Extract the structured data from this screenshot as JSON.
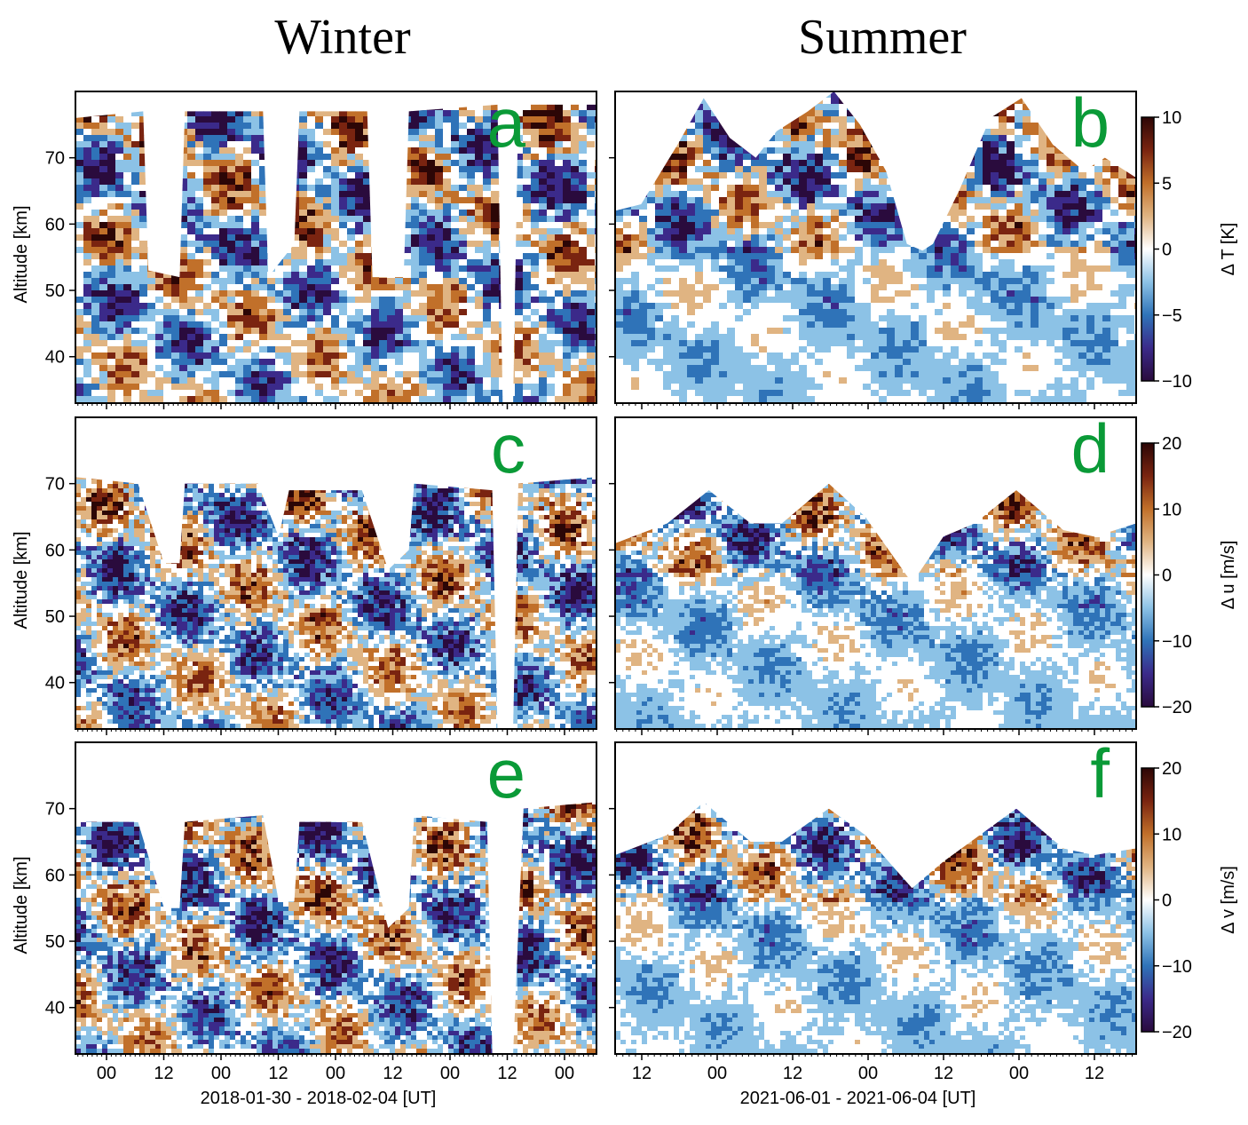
{
  "titles": {
    "left": "Winter",
    "right": "Summer"
  },
  "colors": {
    "colormap": [
      "#2a0b3d",
      "#3b2a8a",
      "#2f73b8",
      "#8cc2e6",
      "#ffffff",
      "#e0b482",
      "#c1702a",
      "#7a2410",
      "#2c0606"
    ],
    "panel_letter": "#0a9a37",
    "no_data": "#ffffff"
  },
  "chart_data": [
    {
      "type": "heatmap",
      "panel": "a",
      "column": "winter",
      "variable": "ΔT",
      "xlabel": "",
      "ylabel": "Altitude [km]",
      "ylim": [
        33,
        80
      ],
      "yticks": [
        40,
        50,
        60,
        70
      ],
      "xticks": [
        "00",
        "12",
        "00",
        "12",
        "00",
        "12",
        "00",
        "12",
        "00"
      ],
      "zlim": [
        -10,
        10
      ],
      "top_altitude_km": [
        [
          0,
          76
        ],
        [
          0.13,
          77
        ],
        [
          0.14,
          53
        ],
        [
          0.2,
          52
        ],
        [
          0.21,
          77
        ],
        [
          0.36,
          77
        ],
        [
          0.37,
          52
        ],
        [
          0.42,
          57
        ],
        [
          0.43,
          77
        ],
        [
          0.56,
          77
        ],
        [
          0.57,
          52
        ],
        [
          0.63,
          52
        ],
        [
          0.64,
          77
        ],
        [
          0.81,
          78
        ],
        [
          0.82,
          0
        ],
        [
          0.84,
          0
        ],
        [
          0.85,
          78
        ],
        [
          1,
          78
        ]
      ]
    },
    {
      "type": "heatmap",
      "panel": "b",
      "column": "summer",
      "variable": "ΔT",
      "xlabel": "",
      "ylabel": "",
      "ylim": [
        33,
        80
      ],
      "yticks": [
        40,
        50,
        60,
        70
      ],
      "xticks": [
        "12",
        "00",
        "12",
        "00",
        "12",
        "00",
        "12"
      ],
      "zlim": [
        -10,
        10
      ],
      "colorbar_label": "Δ T [K]",
      "colorbar_ticks": [
        10,
        5,
        0,
        -5,
        -10
      ],
      "top_altitude_km": [
        [
          0,
          62
        ],
        [
          0.05,
          63
        ],
        [
          0.12,
          72
        ],
        [
          0.17,
          79
        ],
        [
          0.22,
          73
        ],
        [
          0.27,
          70
        ],
        [
          0.31,
          74
        ],
        [
          0.37,
          77
        ],
        [
          0.42,
          80
        ],
        [
          0.47,
          75
        ],
        [
          0.52,
          68
        ],
        [
          0.56,
          57
        ],
        [
          0.59,
          56
        ],
        [
          0.61,
          57
        ],
        [
          0.66,
          65
        ],
        [
          0.72,
          76
        ],
        [
          0.78,
          79
        ],
        [
          0.84,
          72
        ],
        [
          0.9,
          68
        ],
        [
          0.94,
          70
        ],
        [
          1,
          67
        ]
      ]
    },
    {
      "type": "heatmap",
      "panel": "c",
      "column": "winter",
      "variable": "Δu",
      "xlabel": "",
      "ylabel": "Altitude [km]",
      "ylim": [
        33,
        80
      ],
      "yticks": [
        40,
        50,
        60,
        70
      ],
      "xticks": [
        "00",
        "12",
        "00",
        "12",
        "00",
        "12",
        "00",
        "12",
        "00"
      ],
      "zlim": [
        -20,
        20
      ],
      "top_altitude_km": [
        [
          0,
          71
        ],
        [
          0.12,
          70
        ],
        [
          0.17,
          58
        ],
        [
          0.2,
          58
        ],
        [
          0.21,
          70
        ],
        [
          0.35,
          70
        ],
        [
          0.39,
          62
        ],
        [
          0.41,
          69
        ],
        [
          0.55,
          69
        ],
        [
          0.6,
          57
        ],
        [
          0.64,
          60
        ],
        [
          0.65,
          70
        ],
        [
          0.8,
          69
        ],
        [
          0.81,
          0
        ],
        [
          0.84,
          0
        ],
        [
          0.85,
          70
        ],
        [
          1,
          71
        ]
      ]
    },
    {
      "type": "heatmap",
      "panel": "d",
      "column": "summer",
      "variable": "Δu",
      "xlabel": "",
      "ylabel": "",
      "ylim": [
        33,
        80
      ],
      "yticks": [
        40,
        50,
        60,
        70
      ],
      "xticks": [
        "12",
        "00",
        "12",
        "00",
        "12",
        "00",
        "12"
      ],
      "zlim": [
        -20,
        20
      ],
      "colorbar_label": "Δ u [m/s]",
      "colorbar_ticks": [
        20,
        10,
        0,
        -10,
        -20
      ],
      "top_altitude_km": [
        [
          0,
          61
        ],
        [
          0.1,
          64
        ],
        [
          0.18,
          69
        ],
        [
          0.26,
          64
        ],
        [
          0.32,
          64
        ],
        [
          0.41,
          70
        ],
        [
          0.48,
          65
        ],
        [
          0.57,
          55
        ],
        [
          0.63,
          62
        ],
        [
          0.69,
          64
        ],
        [
          0.77,
          69
        ],
        [
          0.86,
          63
        ],
        [
          0.92,
          62
        ],
        [
          1,
          64
        ]
      ]
    },
    {
      "type": "heatmap",
      "panel": "e",
      "column": "winter",
      "variable": "Δv",
      "xlabel": "2018-01-30 - 2018-02-04 [UT]",
      "ylabel": "Altitude [km]",
      "ylim": [
        33,
        80
      ],
      "yticks": [
        40,
        50,
        60,
        70
      ],
      "xticks": [
        "00",
        "12",
        "00",
        "12",
        "00",
        "12",
        "00",
        "12",
        "00"
      ],
      "zlim": [
        -20,
        20
      ],
      "top_altitude_km": [
        [
          0,
          68
        ],
        [
          0.12,
          68
        ],
        [
          0.17,
          55
        ],
        [
          0.2,
          55
        ],
        [
          0.21,
          68
        ],
        [
          0.36,
          69
        ],
        [
          0.39,
          56
        ],
        [
          0.42,
          56
        ],
        [
          0.43,
          68
        ],
        [
          0.55,
          68
        ],
        [
          0.6,
          52
        ],
        [
          0.64,
          55
        ],
        [
          0.65,
          69
        ],
        [
          0.79,
          68
        ],
        [
          0.8,
          0
        ],
        [
          0.84,
          0
        ],
        [
          0.86,
          70
        ],
        [
          1,
          71
        ]
      ]
    },
    {
      "type": "heatmap",
      "panel": "f",
      "column": "summer",
      "variable": "Δv",
      "xlabel": "2021-06-01 - 2021-06-04 [UT]",
      "ylabel": "",
      "ylim": [
        33,
        80
      ],
      "yticks": [
        40,
        50,
        60,
        70
      ],
      "xticks": [
        "12",
        "00",
        "12",
        "00",
        "12",
        "00",
        "12"
      ],
      "zlim": [
        -20,
        20
      ],
      "colorbar_label": "Δ v [m/s]",
      "colorbar_ticks": [
        20,
        10,
        0,
        -10,
        -20
      ],
      "top_altitude_km": [
        [
          0,
          63
        ],
        [
          0.1,
          66
        ],
        [
          0.17,
          71
        ],
        [
          0.26,
          65
        ],
        [
          0.32,
          65
        ],
        [
          0.41,
          70
        ],
        [
          0.48,
          66
        ],
        [
          0.57,
          58
        ],
        [
          0.63,
          62
        ],
        [
          0.7,
          66
        ],
        [
          0.77,
          70
        ],
        [
          0.86,
          64
        ],
        [
          0.92,
          63
        ],
        [
          1,
          64
        ]
      ]
    }
  ]
}
